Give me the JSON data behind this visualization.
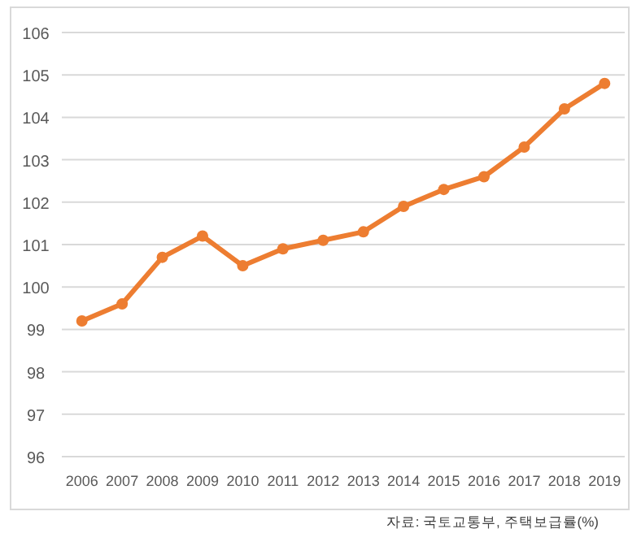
{
  "chart_data": {
    "type": "line",
    "categories": [
      "2006",
      "2007",
      "2008",
      "2009",
      "2010",
      "2011",
      "2012",
      "2013",
      "2014",
      "2015",
      "2016",
      "2017",
      "2018",
      "2019"
    ],
    "series": [
      {
        "color": "#ed7d31",
        "values": [
          99.2,
          99.6,
          100.7,
          101.2,
          100.5,
          100.9,
          101.1,
          101.3,
          101.9,
          102.3,
          102.6,
          103.3,
          104.2,
          104.8
        ]
      }
    ],
    "ylim": [
      96,
      106
    ],
    "yticks": [
      96,
      97,
      98,
      99,
      100,
      101,
      102,
      103,
      104,
      105,
      106
    ],
    "grid": "y",
    "marker": "circle",
    "annotations": [
      "자료: 국토교통부, 주택보급률(%)"
    ]
  }
}
